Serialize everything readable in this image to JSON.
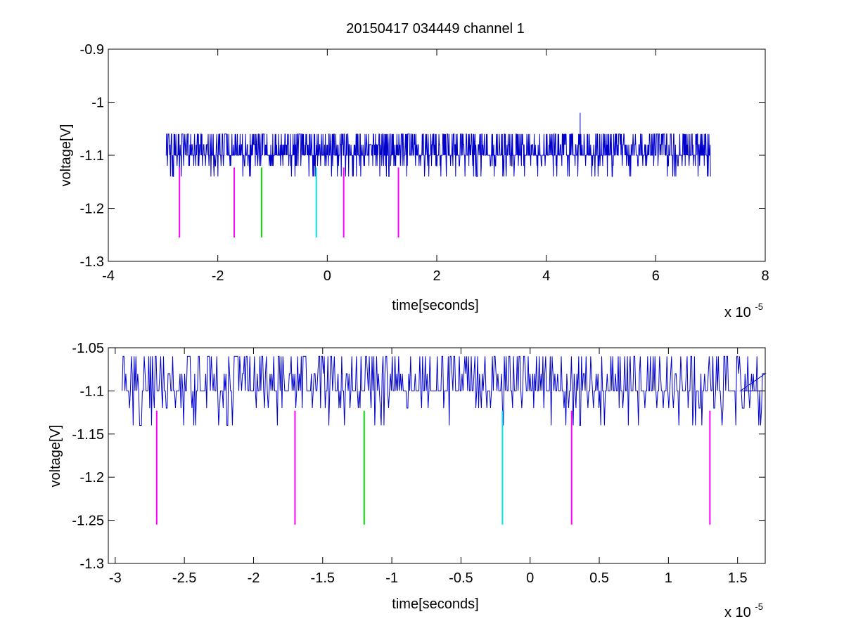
{
  "title": "20150417 034449 channel 1",
  "chart_data": [
    {
      "type": "line",
      "xlabel": "time[seconds]",
      "ylabel": "voltage[V]",
      "x_exponent_label": "x 10",
      "x_exponent_power": "-5",
      "xlim": [
        -4,
        8
      ],
      "ylim": [
        -1.3,
        -0.9
      ],
      "xticks": [
        -4,
        -2,
        0,
        2,
        4,
        6,
        8
      ],
      "xtick_labels": [
        "-4",
        "-2",
        "0",
        "2",
        "4",
        "6",
        "8"
      ],
      "yticks": [
        -1.3,
        -1.2,
        -1.1,
        -1,
        -0.9
      ],
      "ytick_labels": [
        "-1.3",
        "-1.2",
        "-1.1",
        "-1",
        "-0.9"
      ],
      "grid": false,
      "signal": {
        "color": "#0000cc",
        "x_range": [
          -2.95,
          7.0
        ],
        "baseline": -1.1,
        "levels": [
          -1.14,
          -1.12,
          -1.1,
          -1.08,
          -1.06
        ],
        "spike": {
          "x": 4.62,
          "y": -1.02
        }
      },
      "markers": [
        {
          "x": -2.7,
          "y_top": -1.123,
          "y_bottom": -1.255,
          "color": "#ff00ff"
        },
        {
          "x": -1.7,
          "y_top": -1.123,
          "y_bottom": -1.255,
          "color": "#ff00ff"
        },
        {
          "x": -1.2,
          "y_top": -1.123,
          "y_bottom": -1.255,
          "color": "#00dd00"
        },
        {
          "x": -0.2,
          "y_top": -1.123,
          "y_bottom": -1.255,
          "color": "#00e5e5"
        },
        {
          "x": 0.3,
          "y_top": -1.123,
          "y_bottom": -1.255,
          "color": "#ff00ff"
        },
        {
          "x": 1.3,
          "y_top": -1.123,
          "y_bottom": -1.255,
          "color": "#ff00ff"
        }
      ]
    },
    {
      "type": "line",
      "xlabel": "time[seconds]",
      "ylabel": "voltage[V]",
      "x_exponent_label": "x 10",
      "x_exponent_power": "-5",
      "xlim": [
        -3.05,
        1.7
      ],
      "ylim": [
        -1.3,
        -1.05
      ],
      "xticks": [
        -3,
        -2.5,
        -2,
        -1.5,
        -1,
        -0.5,
        0,
        0.5,
        1,
        1.5
      ],
      "xtick_labels": [
        "-3",
        "-2.5",
        "-2",
        "-1.5",
        "-1",
        "-0.5",
        "0",
        "0.5",
        "1",
        "1.5"
      ],
      "yticks": [
        -1.3,
        -1.25,
        -1.2,
        -1.15,
        -1.1,
        -1.05
      ],
      "ytick_labels": [
        "-1.3",
        "-1.25",
        "-1.2",
        "-1.15",
        "-1.1",
        "-1.05"
      ],
      "grid": false,
      "signal": {
        "color": "#0000cc",
        "x_range": [
          -2.95,
          1.7
        ],
        "baseline": -1.1,
        "levels": [
          -1.14,
          -1.12,
          -1.1,
          -1.08,
          -1.06
        ]
      },
      "markers": [
        {
          "x": -2.7,
          "y_top": -1.123,
          "y_bottom": -1.255,
          "color": "#ff00ff"
        },
        {
          "x": -1.7,
          "y_top": -1.123,
          "y_bottom": -1.255,
          "color": "#ff00ff"
        },
        {
          "x": -1.2,
          "y_top": -1.123,
          "y_bottom": -1.255,
          "color": "#00dd00"
        },
        {
          "x": -0.2,
          "y_top": -1.123,
          "y_bottom": -1.255,
          "color": "#00e5e5"
        },
        {
          "x": 0.3,
          "y_top": -1.123,
          "y_bottom": -1.255,
          "color": "#ff00ff"
        },
        {
          "x": 1.3,
          "y_top": -1.123,
          "y_bottom": -1.255,
          "color": "#ff00ff"
        }
      ]
    }
  ]
}
